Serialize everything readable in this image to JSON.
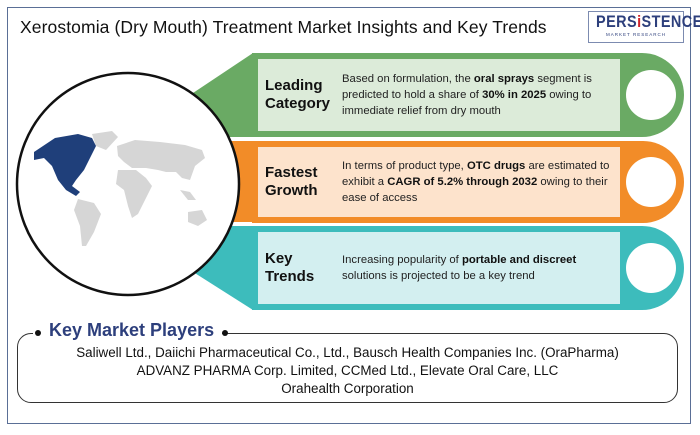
{
  "title": "Xerostomia (Dry Mouth) Treatment Market Insights and Key Trends",
  "logo": {
    "main_pre": "PERS",
    "main_i": "i",
    "main_post": "STENCE",
    "sub": "MARKET RESEARCH"
  },
  "map": {
    "highlight_region": "North America",
    "highlight_color": "#1f3f7a",
    "land_color": "#d6d6d6"
  },
  "cards": [
    {
      "heading": "Leading Category",
      "color": "#6aaa64",
      "inner_color": "#dcebd9",
      "parts": [
        "Based on formulation, the ",
        "oral sprays",
        " segment is predicted to hold a share of ",
        "30% in 2025",
        " owing to immediate relief from dry mouth"
      ]
    },
    {
      "heading": "Fastest Growth",
      "color": "#f28c28",
      "inner_color": "#fde3cc",
      "parts": [
        "In terms of product type, ",
        "OTC drugs",
        " are estimated to exhibit a ",
        "CAGR of 5.2% through 2032",
        " owing to their ease of access"
      ]
    },
    {
      "heading": "Key Trends",
      "color": "#3dbcbc",
      "inner_color": "#d3eff0",
      "parts": [
        "Increasing popularity of ",
        "portable and discreet",
        " solutions is projected to be a key trend",
        "",
        ""
      ]
    }
  ],
  "players": {
    "title": "Key Market Players",
    "lines": [
      "Saliwell Ltd., Daiichi Pharmaceutical Co., Ltd., Bausch Health Companies Inc. (OraPharma)",
      "ADVANZ PHARMA Corp. Limited, CCMed Ltd., Elevate Oral Care, LLC",
      "Orahealth Corporation"
    ]
  }
}
